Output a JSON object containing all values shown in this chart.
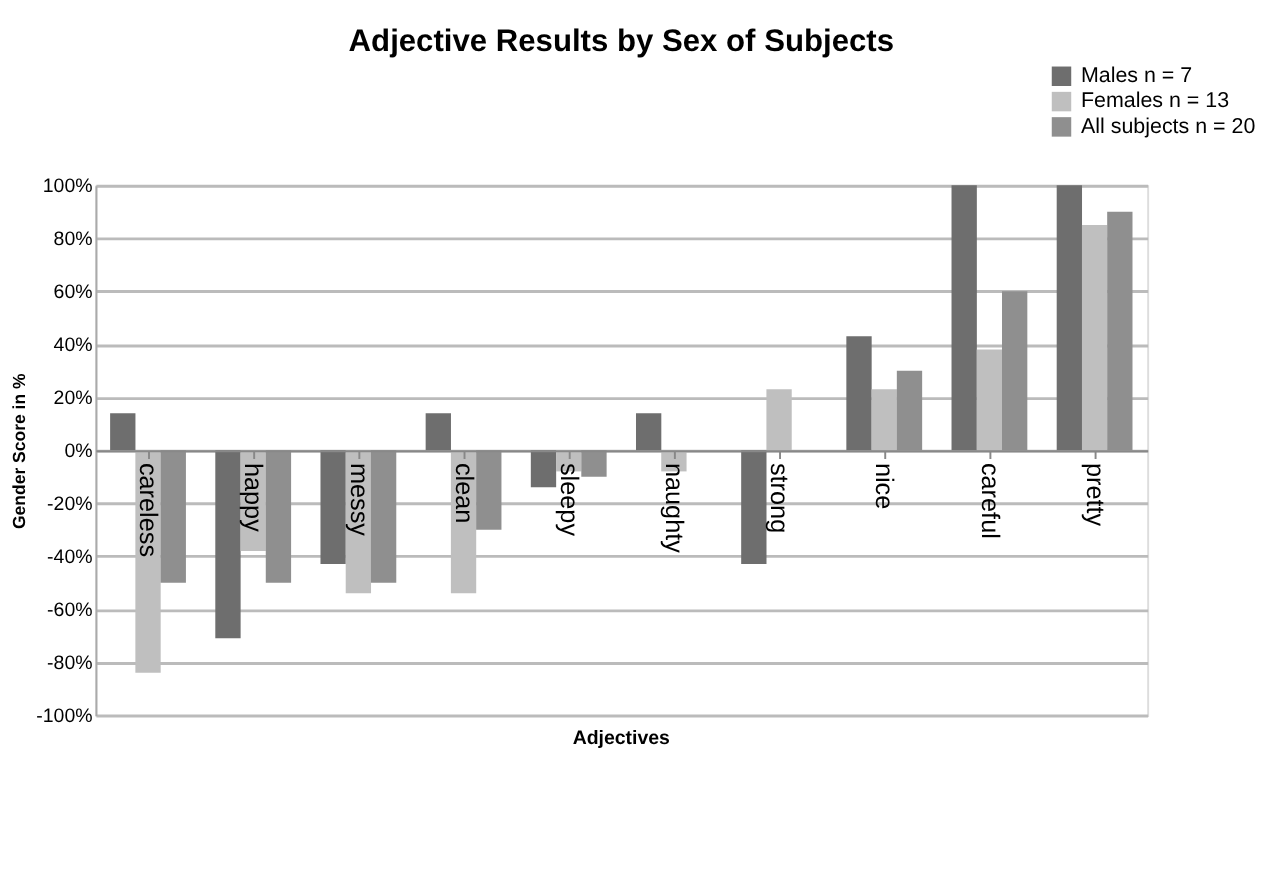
{
  "chart_data": {
    "type": "bar",
    "title": "Adjective Results by Sex of Subjects",
    "xlabel": "Adjectives",
    "ylabel": "Gender Score in %",
    "categories": [
      "careless",
      "happy",
      "messy",
      "clean",
      "sleepy",
      "naughty",
      "strong",
      "nice",
      "careful",
      "pretty"
    ],
    "series": [
      {
        "name": "Males n = 7",
        "color": "#6e6e6e",
        "values": [
          14,
          -71,
          -43,
          14,
          -14,
          14,
          -43,
          43,
          100,
          100
        ]
      },
      {
        "name": "Females n = 13",
        "color": "#bfbfbf",
        "values": [
          -84,
          -38,
          -54,
          -54,
          -8,
          -8,
          23,
          23,
          38,
          85
        ]
      },
      {
        "name": "All subjects n = 20",
        "color": "#8f8f8f",
        "values": [
          -50,
          -50,
          -50,
          -30,
          -10,
          0,
          0,
          30,
          60,
          90
        ]
      }
    ],
    "ylim": [
      -100,
      100
    ],
    "yticks": [
      {
        "value": -100,
        "label": "-100%"
      },
      {
        "value": -80,
        "label": "-80%"
      },
      {
        "value": -60,
        "label": "-60%"
      },
      {
        "value": -40,
        "label": "-40%"
      },
      {
        "value": -20,
        "label": "-20%"
      },
      {
        "value": 0,
        "label": "0%"
      },
      {
        "value": 20,
        "label": "20%"
      },
      {
        "value": 40,
        "label": "40%"
      },
      {
        "value": 60,
        "label": "60%"
      },
      {
        "value": 80,
        "label": "80%"
      },
      {
        "value": 100,
        "label": "100%"
      }
    ],
    "grid": "y",
    "legend": "top right"
  }
}
